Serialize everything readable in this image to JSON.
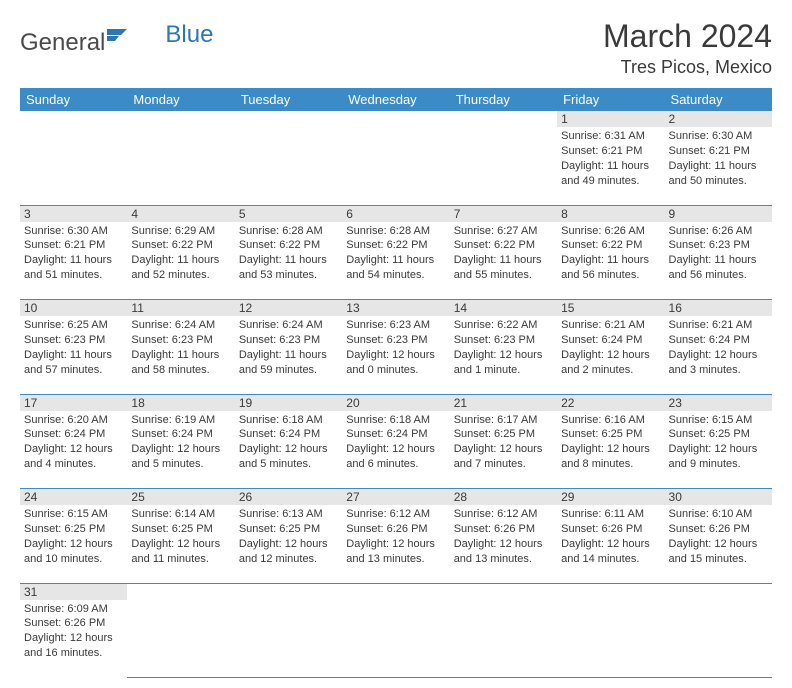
{
  "logo": {
    "general": "General",
    "blue": "Blue"
  },
  "title": "March 2024",
  "location": "Tres Picos, Mexico",
  "colors": {
    "header_bg": "#3b8bc6",
    "header_text": "#ffffff",
    "daynum_bg": "#e6e6e6",
    "text": "#3a3a3a",
    "logo_blue": "#2e75b6"
  },
  "weekdays": [
    "Sunday",
    "Monday",
    "Tuesday",
    "Wednesday",
    "Thursday",
    "Friday",
    "Saturday"
  ],
  "weeks": [
    [
      null,
      null,
      null,
      null,
      null,
      {
        "n": "1",
        "sr": "Sunrise: 6:31 AM",
        "ss": "Sunset: 6:21 PM",
        "dl": "Daylight: 11 hours and 49 minutes."
      },
      {
        "n": "2",
        "sr": "Sunrise: 6:30 AM",
        "ss": "Sunset: 6:21 PM",
        "dl": "Daylight: 11 hours and 50 minutes."
      }
    ],
    [
      {
        "n": "3",
        "sr": "Sunrise: 6:30 AM",
        "ss": "Sunset: 6:21 PM",
        "dl": "Daylight: 11 hours and 51 minutes."
      },
      {
        "n": "4",
        "sr": "Sunrise: 6:29 AM",
        "ss": "Sunset: 6:22 PM",
        "dl": "Daylight: 11 hours and 52 minutes."
      },
      {
        "n": "5",
        "sr": "Sunrise: 6:28 AM",
        "ss": "Sunset: 6:22 PM",
        "dl": "Daylight: 11 hours and 53 minutes."
      },
      {
        "n": "6",
        "sr": "Sunrise: 6:28 AM",
        "ss": "Sunset: 6:22 PM",
        "dl": "Daylight: 11 hours and 54 minutes."
      },
      {
        "n": "7",
        "sr": "Sunrise: 6:27 AM",
        "ss": "Sunset: 6:22 PM",
        "dl": "Daylight: 11 hours and 55 minutes."
      },
      {
        "n": "8",
        "sr": "Sunrise: 6:26 AM",
        "ss": "Sunset: 6:22 PM",
        "dl": "Daylight: 11 hours and 56 minutes."
      },
      {
        "n": "9",
        "sr": "Sunrise: 6:26 AM",
        "ss": "Sunset: 6:23 PM",
        "dl": "Daylight: 11 hours and 56 minutes."
      }
    ],
    [
      {
        "n": "10",
        "sr": "Sunrise: 6:25 AM",
        "ss": "Sunset: 6:23 PM",
        "dl": "Daylight: 11 hours and 57 minutes."
      },
      {
        "n": "11",
        "sr": "Sunrise: 6:24 AM",
        "ss": "Sunset: 6:23 PM",
        "dl": "Daylight: 11 hours and 58 minutes."
      },
      {
        "n": "12",
        "sr": "Sunrise: 6:24 AM",
        "ss": "Sunset: 6:23 PM",
        "dl": "Daylight: 11 hours and 59 minutes."
      },
      {
        "n": "13",
        "sr": "Sunrise: 6:23 AM",
        "ss": "Sunset: 6:23 PM",
        "dl": "Daylight: 12 hours and 0 minutes."
      },
      {
        "n": "14",
        "sr": "Sunrise: 6:22 AM",
        "ss": "Sunset: 6:23 PM",
        "dl": "Daylight: 12 hours and 1 minute."
      },
      {
        "n": "15",
        "sr": "Sunrise: 6:21 AM",
        "ss": "Sunset: 6:24 PM",
        "dl": "Daylight: 12 hours and 2 minutes."
      },
      {
        "n": "16",
        "sr": "Sunrise: 6:21 AM",
        "ss": "Sunset: 6:24 PM",
        "dl": "Daylight: 12 hours and 3 minutes."
      }
    ],
    [
      {
        "n": "17",
        "sr": "Sunrise: 6:20 AM",
        "ss": "Sunset: 6:24 PM",
        "dl": "Daylight: 12 hours and 4 minutes."
      },
      {
        "n": "18",
        "sr": "Sunrise: 6:19 AM",
        "ss": "Sunset: 6:24 PM",
        "dl": "Daylight: 12 hours and 5 minutes."
      },
      {
        "n": "19",
        "sr": "Sunrise: 6:18 AM",
        "ss": "Sunset: 6:24 PM",
        "dl": "Daylight: 12 hours and 5 minutes."
      },
      {
        "n": "20",
        "sr": "Sunrise: 6:18 AM",
        "ss": "Sunset: 6:24 PM",
        "dl": "Daylight: 12 hours and 6 minutes."
      },
      {
        "n": "21",
        "sr": "Sunrise: 6:17 AM",
        "ss": "Sunset: 6:25 PM",
        "dl": "Daylight: 12 hours and 7 minutes."
      },
      {
        "n": "22",
        "sr": "Sunrise: 6:16 AM",
        "ss": "Sunset: 6:25 PM",
        "dl": "Daylight: 12 hours and 8 minutes."
      },
      {
        "n": "23",
        "sr": "Sunrise: 6:15 AM",
        "ss": "Sunset: 6:25 PM",
        "dl": "Daylight: 12 hours and 9 minutes."
      }
    ],
    [
      {
        "n": "24",
        "sr": "Sunrise: 6:15 AM",
        "ss": "Sunset: 6:25 PM",
        "dl": "Daylight: 12 hours and 10 minutes."
      },
      {
        "n": "25",
        "sr": "Sunrise: 6:14 AM",
        "ss": "Sunset: 6:25 PM",
        "dl": "Daylight: 12 hours and 11 minutes."
      },
      {
        "n": "26",
        "sr": "Sunrise: 6:13 AM",
        "ss": "Sunset: 6:25 PM",
        "dl": "Daylight: 12 hours and 12 minutes."
      },
      {
        "n": "27",
        "sr": "Sunrise: 6:12 AM",
        "ss": "Sunset: 6:26 PM",
        "dl": "Daylight: 12 hours and 13 minutes."
      },
      {
        "n": "28",
        "sr": "Sunrise: 6:12 AM",
        "ss": "Sunset: 6:26 PM",
        "dl": "Daylight: 12 hours and 13 minutes."
      },
      {
        "n": "29",
        "sr": "Sunrise: 6:11 AM",
        "ss": "Sunset: 6:26 PM",
        "dl": "Daylight: 12 hours and 14 minutes."
      },
      {
        "n": "30",
        "sr": "Sunrise: 6:10 AM",
        "ss": "Sunset: 6:26 PM",
        "dl": "Daylight: 12 hours and 15 minutes."
      }
    ],
    [
      {
        "n": "31",
        "sr": "Sunrise: 6:09 AM",
        "ss": "Sunset: 6:26 PM",
        "dl": "Daylight: 12 hours and 16 minutes."
      },
      null,
      null,
      null,
      null,
      null,
      null
    ]
  ]
}
